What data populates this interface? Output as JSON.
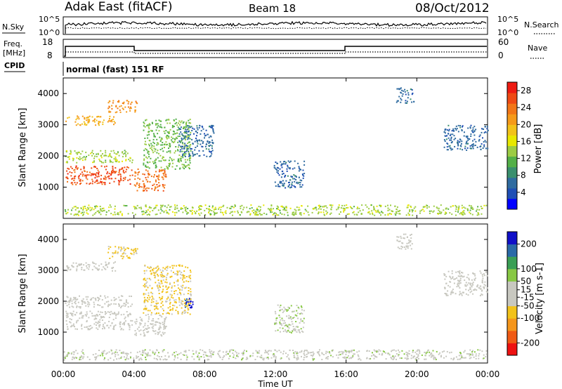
{
  "header": {
    "station": "Adak East (fitACF)",
    "beam": "Beam 18",
    "date": "08/Oct/2012"
  },
  "top_panels": {
    "nsky_label": "N.Sky",
    "nsearch_label": "N.Search",
    "nsky_ticks": [
      "10^5",
      "10^0"
    ],
    "freq_label_1": "Freq.",
    "freq_label_2": "[MHz]",
    "freq_ticks": [
      "18",
      "8"
    ],
    "nave_label": "Nave",
    "nave_ticks": [
      "60",
      "0"
    ],
    "cpid_label": "CPID",
    "cpid_text": "normal (fast) 151 RF"
  },
  "colors": {
    "power_scale": [
      "#0000ff",
      "#1f4fb5",
      "#2f6ba0",
      "#3a8f6e",
      "#53b048",
      "#9ccc44",
      "#e8e800",
      "#f2c21a",
      "#f59a1a",
      "#f27617",
      "#ef4a14",
      "#ee1b12"
    ],
    "velocity_scale": [
      "#ee1111",
      "#f05a14",
      "#f5961c",
      "#f2c21a",
      "#c8c8c0",
      "#c8c8c0",
      "#88c844",
      "#3a9f55",
      "#2a6aa8",
      "#1010c8"
    ]
  },
  "chart_data": [
    {
      "type": "heatmap",
      "panel": "power",
      "x_ticks": [
        "00:00",
        "04:00",
        "08:00",
        "12:00",
        "16:00",
        "20:00",
        "00:00"
      ],
      "xlim_hours": [
        0,
        24
      ],
      "ylabel": "Slant Range [km]",
      "y_ticks": [
        1000,
        2000,
        3000,
        4000
      ],
      "ylim": [
        0,
        4500
      ],
      "colorbar_label": "Power [dB]",
      "colorbar_ticks": [
        4,
        8,
        12,
        16,
        20,
        24,
        28
      ],
      "colorbar_range": [
        0,
        30
      ],
      "regions": [
        {
          "hours": [
            0.1,
            3.9
          ],
          "km": [
            1100,
            1700
          ],
          "value": 26
        },
        {
          "hours": [
            0.1,
            3.9
          ],
          "km": [
            1800,
            2200
          ],
          "value": 14
        },
        {
          "hours": [
            0.1,
            3.0
          ],
          "km": [
            3000,
            3300
          ],
          "value": 20
        },
        {
          "hours": [
            2.5,
            4.2
          ],
          "km": [
            3400,
            3800
          ],
          "value": 22
        },
        {
          "hours": [
            4.0,
            5.8
          ],
          "km": [
            900,
            1600
          ],
          "value": 24
        },
        {
          "hours": [
            4.5,
            7.2
          ],
          "km": [
            1600,
            3200
          ],
          "value": 12
        },
        {
          "hours": [
            6.5,
            8.5
          ],
          "km": [
            2000,
            3000
          ],
          "value": 6
        },
        {
          "hours": [
            11.9,
            13.6
          ],
          "km": [
            1000,
            1900
          ],
          "value": 6
        },
        {
          "hours": [
            18.8,
            19.8
          ],
          "km": [
            3700,
            4200
          ],
          "value": 6
        },
        {
          "hours": [
            21.5,
            24.0
          ],
          "km": [
            2200,
            3000
          ],
          "value": 6
        },
        {
          "hours": [
            0.0,
            24.0
          ],
          "km": [
            120,
            450
          ],
          "value": 14
        }
      ]
    },
    {
      "type": "heatmap",
      "panel": "velocity",
      "x_ticks": [
        "00:00",
        "04:00",
        "08:00",
        "12:00",
        "16:00",
        "20:00",
        "00:00"
      ],
      "xlim_hours": [
        0,
        24
      ],
      "xlabel": "Time UT",
      "ylabel": "Slant Range [km]",
      "y_ticks": [
        1000,
        2000,
        3000,
        4000
      ],
      "ylim": [
        0,
        4500
      ],
      "colorbar_label": "Velocity [m s-1]",
      "colorbar_ticks": [
        200,
        100,
        50,
        15,
        -15,
        -50,
        -100,
        -200
      ],
      "colorbar_range": [
        -250,
        250
      ],
      "regions": [
        {
          "hours": [
            0.1,
            3.9
          ],
          "km": [
            1100,
            1700
          ],
          "value": 0
        },
        {
          "hours": [
            0.1,
            3.9
          ],
          "km": [
            1800,
            2200
          ],
          "value": 0
        },
        {
          "hours": [
            0.1,
            3.0
          ],
          "km": [
            3000,
            3300
          ],
          "value": 0
        },
        {
          "hours": [
            2.5,
            4.2
          ],
          "km": [
            3400,
            3800
          ],
          "value": -60
        },
        {
          "hours": [
            4.0,
            5.8
          ],
          "km": [
            900,
            1600
          ],
          "value": 0
        },
        {
          "hours": [
            4.5,
            7.2
          ],
          "km": [
            1600,
            3200
          ],
          "value": -60
        },
        {
          "hours": [
            6.8,
            7.3
          ],
          "km": [
            1800,
            2100
          ],
          "value": 220
        },
        {
          "hours": [
            11.9,
            13.6
          ],
          "km": [
            1000,
            1900
          ],
          "value": 40
        },
        {
          "hours": [
            18.8,
            19.8
          ],
          "km": [
            3700,
            4200
          ],
          "value": 0
        },
        {
          "hours": [
            21.5,
            24.0
          ],
          "km": [
            2200,
            3000
          ],
          "value": 0
        },
        {
          "hours": [
            0.0,
            24.0
          ],
          "km": [
            120,
            450
          ],
          "value": 30
        }
      ]
    }
  ]
}
